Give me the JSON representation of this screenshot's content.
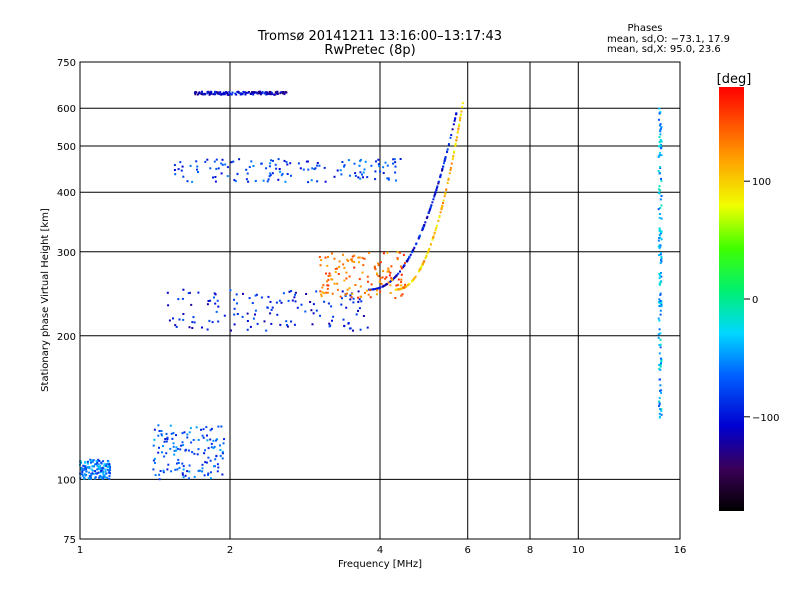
{
  "chart_data": {
    "type": "scatter",
    "title": "Tromsø 20141211 13:16:00–13:17:43",
    "subtitle": "RwPretec (8p)",
    "xlabel": "Frequency [MHz]",
    "ylabel": "Stationary phase Virtual Height [km]",
    "x_scale": "log",
    "y_scale": "log",
    "xlim": [
      1,
      16
    ],
    "ylim": [
      75,
      750
    ],
    "x_ticks": [
      "1",
      "2",
      "4",
      "6",
      "8",
      "10",
      "16"
    ],
    "y_ticks": [
      "75",
      "100",
      "200",
      "300",
      "400",
      "500",
      "600",
      "750"
    ],
    "grid": true,
    "phase_stats": {
      "heading": "Phases",
      "o_line": "mean, sd,O: −73.1, 17.9",
      "x_line": "mean, sd,X:  95.0, 23.6"
    },
    "colorbar": {
      "label": "[deg]",
      "range": [
        -180,
        180
      ],
      "ticks": [
        "100",
        "0",
        "−100"
      ],
      "colormap": "rainbow"
    },
    "traces": [
      {
        "x_range": [
          1.5,
          3.8
        ],
        "height": [
          205,
          250
        ],
        "phase": -95
      },
      {
        "x_range": [
          3.8,
          5.7
        ],
        "height": [
          250,
          590
        ],
        "phase": -100
      },
      {
        "x_range": [
          4.3,
          5.9
        ],
        "height": [
          250,
          640
        ],
        "phase": 105
      },
      {
        "x_range": [
          1.55,
          4.4
        ],
        "height": [
          420,
          470
        ],
        "phase": -80
      },
      {
        "x_range": [
          1.7,
          2.6
        ],
        "height": [
          640,
          650
        ],
        "phase": -110
      },
      {
        "x_range": [
          1.4,
          1.95
        ],
        "height": [
          100,
          130
        ],
        "phase": -70
      },
      {
        "x_range": [
          1.0,
          1.15
        ],
        "height": [
          100,
          110
        ],
        "phase": -60
      },
      {
        "x_range": [
          3.0,
          4.5
        ],
        "height": [
          240,
          300
        ],
        "phase": 140
      },
      {
        "x_range": [
          14.5,
          14.7
        ],
        "height": [
          130,
          600
        ],
        "phase": -40
      }
    ]
  }
}
